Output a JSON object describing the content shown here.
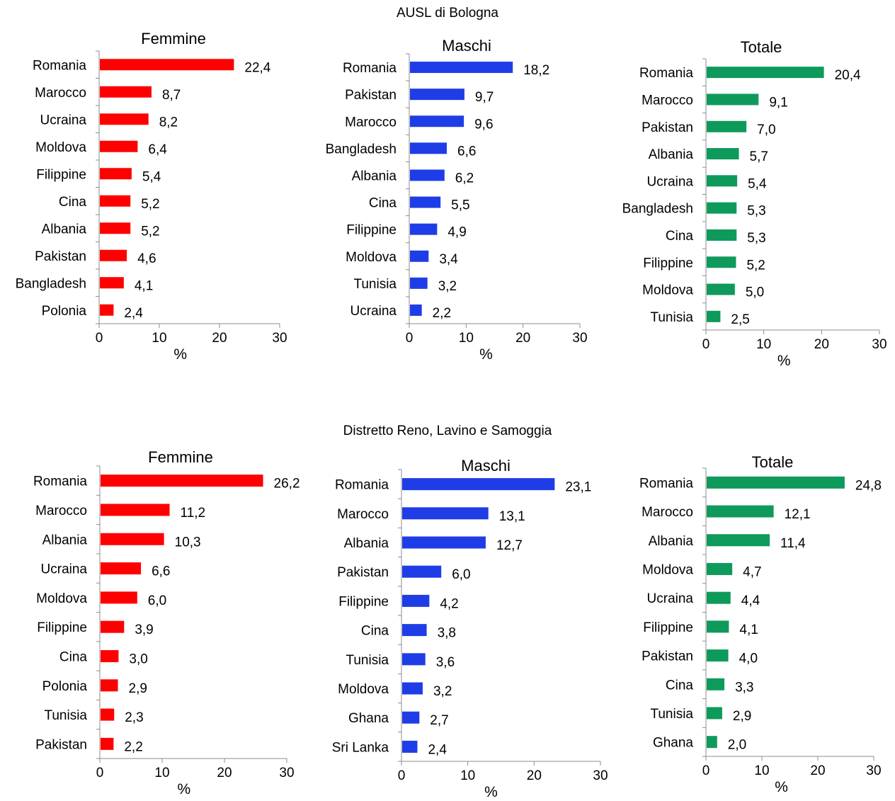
{
  "sections": [
    {
      "title": "AUSL di Bologna"
    },
    {
      "title": "Distretto Reno, Lavino e Samoggia"
    }
  ],
  "chart_data": [
    {
      "type": "bar",
      "orientation": "horizontal",
      "section": "AUSL di Bologna",
      "title": "Femmine",
      "xlabel": "%",
      "xlim": [
        0,
        30
      ],
      "xticks": [
        0,
        10,
        20,
        30
      ],
      "color": "#ff0000",
      "categories": [
        "Romania",
        "Marocco",
        "Ucraina",
        "Moldova",
        "Filippine",
        "Cina",
        "Albania",
        "Pakistan",
        "Bangladesh",
        "Polonia"
      ],
      "values": [
        22.4,
        8.7,
        8.2,
        6.4,
        5.4,
        5.2,
        5.2,
        4.6,
        4.1,
        2.4
      ],
      "labels": [
        "22,4",
        "8,7",
        "8,2",
        "6,4",
        "5,4",
        "5,2",
        "5,2",
        "4,6",
        "4,1",
        "2,4"
      ]
    },
    {
      "type": "bar",
      "orientation": "horizontal",
      "section": "AUSL di Bologna",
      "title": "Maschi",
      "xlabel": "%",
      "xlim": [
        0,
        30
      ],
      "xticks": [
        0,
        10,
        20,
        30
      ],
      "color": "#1f3de6",
      "categories": [
        "Romania",
        "Pakistan",
        "Marocco",
        "Bangladesh",
        "Albania",
        "Cina",
        "Filippine",
        "Moldova",
        "Tunisia",
        "Ucraina"
      ],
      "values": [
        18.2,
        9.7,
        9.6,
        6.6,
        6.2,
        5.5,
        4.9,
        3.4,
        3.2,
        2.2
      ],
      "labels": [
        "18,2",
        "9,7",
        "9,6",
        "6,6",
        "6,2",
        "5,5",
        "4,9",
        "3,4",
        "3,2",
        "2,2"
      ]
    },
    {
      "type": "bar",
      "orientation": "horizontal",
      "section": "AUSL di Bologna",
      "title": "Totale",
      "xlabel": "%",
      "xlim": [
        0,
        30
      ],
      "xticks": [
        0,
        10,
        20,
        30
      ],
      "color": "#0e9a5b",
      "categories": [
        "Romania",
        "Marocco",
        "Pakistan",
        "Albania",
        "Ucraina",
        "Bangladesh",
        "Cina",
        "Filippine",
        "Moldova",
        "Tunisia"
      ],
      "values": [
        20.4,
        9.1,
        7.0,
        5.7,
        5.4,
        5.3,
        5.3,
        5.2,
        5.0,
        2.5
      ],
      "labels": [
        "20,4",
        "9,1",
        "7,0",
        "5,7",
        "5,4",
        "5,3",
        "5,3",
        "5,2",
        "5,0",
        "2,5"
      ]
    },
    {
      "type": "bar",
      "orientation": "horizontal",
      "section": "Distretto Reno, Lavino e Samoggia",
      "title": "Femmine",
      "xlabel": "%",
      "xlim": [
        0,
        30
      ],
      "xticks": [
        0,
        10,
        20,
        30
      ],
      "color": "#ff0000",
      "categories": [
        "Romania",
        "Marocco",
        "Albania",
        "Ucraina",
        "Moldova",
        "Filippine",
        "Cina",
        "Polonia",
        "Tunisia",
        "Pakistan"
      ],
      "values": [
        26.2,
        11.2,
        10.3,
        6.6,
        6.0,
        3.9,
        3.0,
        2.9,
        2.3,
        2.2
      ],
      "labels": [
        "26,2",
        "11,2",
        "10,3",
        "6,6",
        "6,0",
        "3,9",
        "3,0",
        "2,9",
        "2,3",
        "2,2"
      ]
    },
    {
      "type": "bar",
      "orientation": "horizontal",
      "section": "Distretto Reno, Lavino e Samoggia",
      "title": "Maschi",
      "xlabel": "%",
      "xlim": [
        0,
        30
      ],
      "xticks": [
        0,
        10,
        20,
        30
      ],
      "color": "#1f3de6",
      "categories": [
        "Romania",
        "Marocco",
        "Albania",
        "Pakistan",
        "Filippine",
        "Cina",
        "Tunisia",
        "Moldova",
        "Ghana",
        "Sri Lanka"
      ],
      "values": [
        23.1,
        13.1,
        12.7,
        6.0,
        4.2,
        3.8,
        3.6,
        3.2,
        2.7,
        2.4
      ],
      "labels": [
        "23,1",
        "13,1",
        "12,7",
        "6,0",
        "4,2",
        "3,8",
        "3,6",
        "3,2",
        "2,7",
        "2,4"
      ]
    },
    {
      "type": "bar",
      "orientation": "horizontal",
      "section": "Distretto Reno, Lavino e Samoggia",
      "title": "Totale",
      "xlabel": "%",
      "xlim": [
        0,
        30
      ],
      "xticks": [
        0,
        10,
        20,
        30
      ],
      "color": "#0e9a5b",
      "categories": [
        "Romania",
        "Marocco",
        "Albania",
        "Moldova",
        "Ucraina",
        "Filippine",
        "Pakistan",
        "Cina",
        "Tunisia",
        "Ghana"
      ],
      "values": [
        24.8,
        12.1,
        11.4,
        4.7,
        4.4,
        4.1,
        4.0,
        3.3,
        2.9,
        2.0
      ],
      "labels": [
        "24,8",
        "12,1",
        "11,4",
        "4,7",
        "4,4",
        "4,1",
        "4,0",
        "3,3",
        "2,9",
        "2,0"
      ]
    }
  ]
}
